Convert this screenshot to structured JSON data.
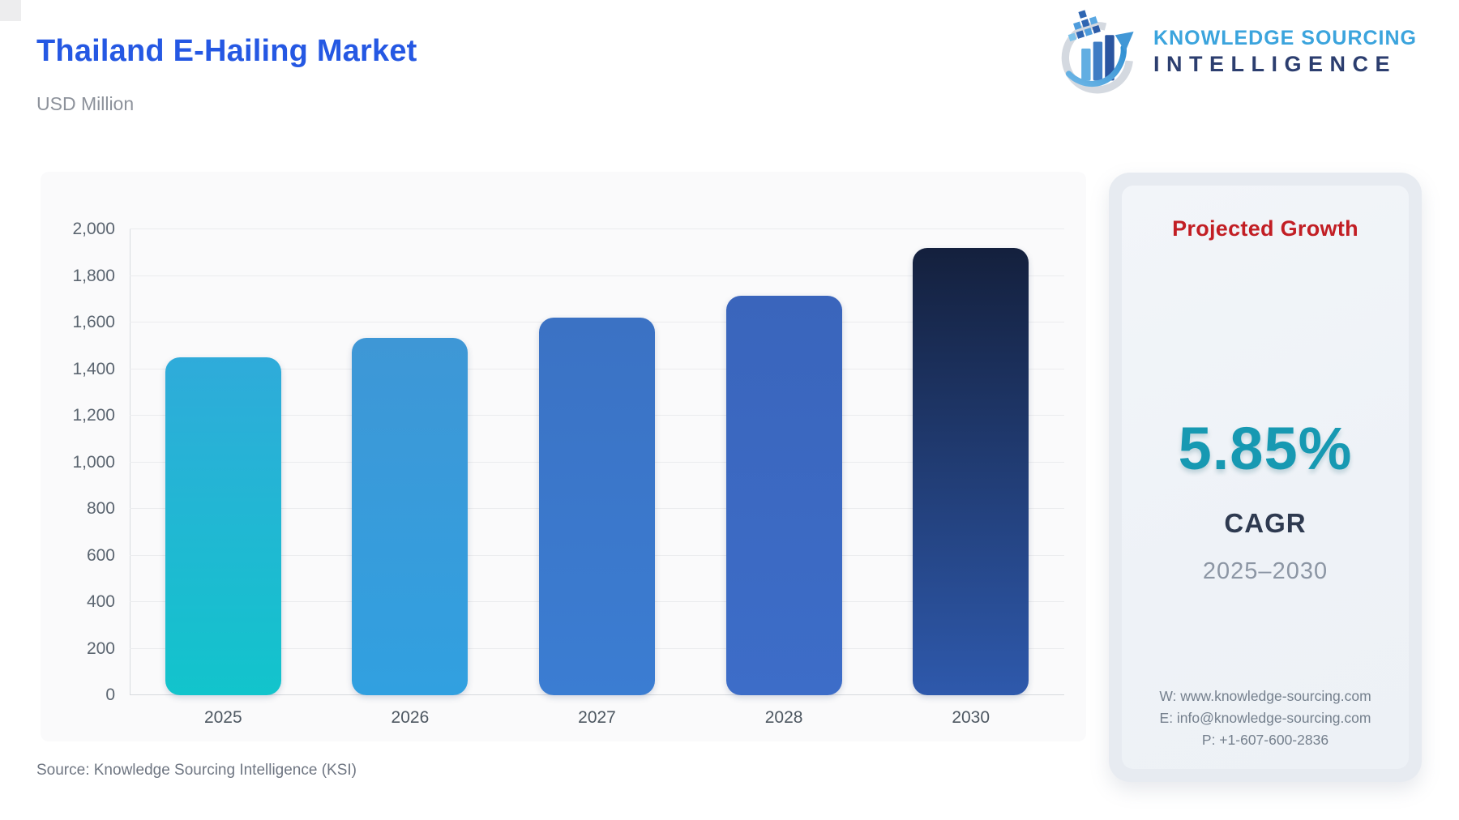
{
  "header": {
    "title": "Thailand E-Hailing Market",
    "subtitle": "USD Million",
    "title_color": "#2558e3"
  },
  "logo": {
    "icon": "bar-chart-growth-arrow-globe",
    "line1": "KNOWLEDGE SOURCING",
    "line2": "INTELLIGENCE",
    "line1_color": "#3ba4dd",
    "line2_color": "#2c3e6f"
  },
  "chart_data": {
    "type": "bar",
    "title": "Thailand E-Hailing Market",
    "ylabel": "USD Million",
    "categories": [
      "2025",
      "2026",
      "2027",
      "2028",
      "2030"
    ],
    "values": [
      1450,
      1535,
      1620,
      1715,
      1920
    ],
    "ylim": [
      0,
      2000
    ],
    "ytick_step": 200,
    "ytick_labels": [
      "0",
      "200",
      "400",
      "600",
      "800",
      "1,000",
      "1,200",
      "1,400",
      "1,600",
      "1,800",
      "2,000"
    ],
    "grid": true,
    "legend": false,
    "bar_colors": [
      {
        "top": "#2fabda",
        "bottom": "#12c4cc"
      },
      {
        "top": "#3e97d6",
        "bottom": "#31a0e0"
      },
      {
        "top": "#3b72c4",
        "bottom": "#3b7dd2"
      },
      {
        "top": "#3a65bc",
        "bottom": "#3d6dc8"
      },
      {
        "top": "#14203d",
        "bottom": "#2e59ac"
      }
    ]
  },
  "panel": {
    "title": "Projected Growth",
    "title_color": "#c21e24",
    "value": "5.85%",
    "value_color": "#1799b2",
    "metric": "CAGR",
    "period": "2025–2030",
    "contact": {
      "website": "W: www.knowledge-sourcing.com",
      "email": "E: info@knowledge-sourcing.com",
      "phone": "P: +1-607-600-2836"
    }
  },
  "footer": {
    "source": "Source: Knowledge Sourcing Intelligence (KSI)"
  }
}
